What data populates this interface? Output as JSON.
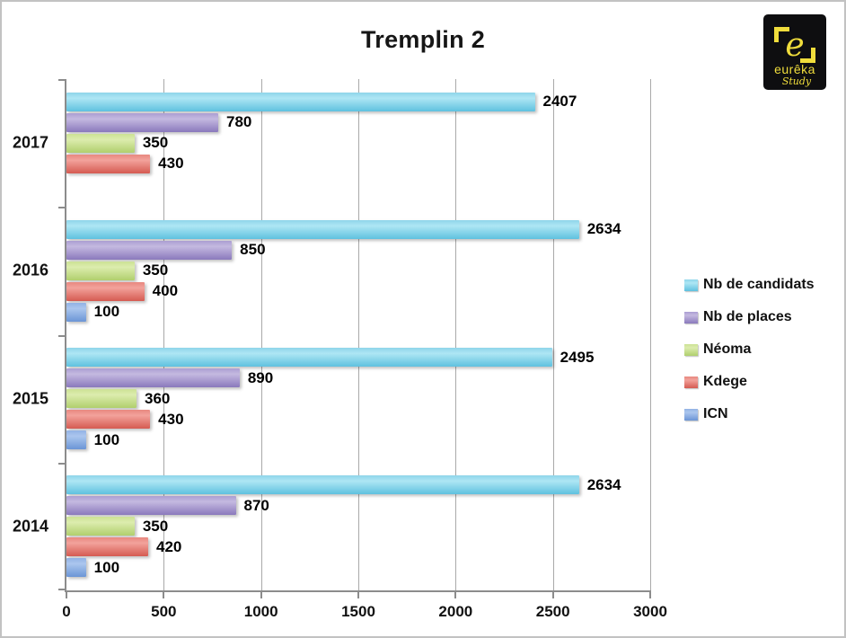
{
  "title": "Tremplin 2",
  "logo": {
    "letter": "e",
    "brand": "eurêka",
    "sub": "Study",
    "background": "#0e0e10",
    "accent": "#f0dd3c"
  },
  "chart_data": {
    "type": "bar",
    "orientation": "horizontal",
    "title": "Tremplin 2",
    "categories": [
      "2017",
      "2016",
      "2015",
      "2014"
    ],
    "series": [
      {
        "name": "Nb de candidats",
        "values": [
          2407,
          2634,
          2495,
          2634
        ],
        "color": {
          "top": "#8ed5ea",
          "light": "#aee6f4",
          "dark": "#5fc1df"
        }
      },
      {
        "name": "Nb de places",
        "values": [
          780,
          850,
          890,
          870
        ],
        "color": {
          "top": "#ab9ed2",
          "light": "#c4b9e0",
          "dark": "#8a79bc"
        }
      },
      {
        "name": "Néoma",
        "values": [
          350,
          350,
          360,
          350
        ],
        "color": {
          "top": "#cce294",
          "light": "#dcecae",
          "dark": "#b0cf6d"
        }
      },
      {
        "name": "Kdege",
        "values": [
          430,
          400,
          430,
          420
        ],
        "color": {
          "top": "#e88880",
          "light": "#f2a29b",
          "dark": "#d55b52"
        }
      },
      {
        "name": "ICN",
        "values": [
          null,
          100,
          100,
          100
        ],
        "color": {
          "top": "#92b2e4",
          "light": "#abc6ee",
          "dark": "#6b95d6"
        }
      }
    ],
    "xlim": [
      0,
      3000
    ],
    "x_ticks": [
      0,
      500,
      1000,
      1500,
      2000,
      2500,
      3000
    ],
    "grid": "vertical",
    "legend_position": "right",
    "gridline_color": "#a9a9a9",
    "axis_color": "#8c8c8c"
  }
}
